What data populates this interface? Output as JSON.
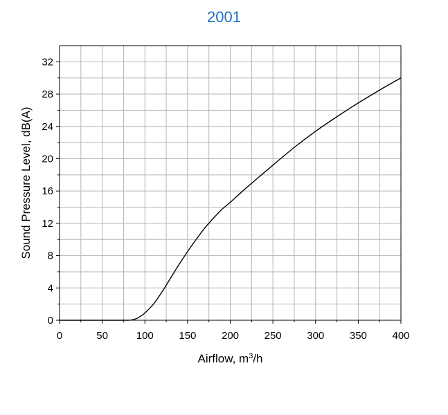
{
  "chart_data": {
    "type": "line",
    "title": "2001",
    "xlabel": "Airflow, m",
    "xlabel_superscript": "3",
    "xlabel_suffix": "/h",
    "ylabel": "Sound Pressure Level, dB(A)",
    "xlim": [
      0,
      400
    ],
    "ylim": [
      0,
      34
    ],
    "x_ticks": [
      0,
      50,
      100,
      150,
      200,
      250,
      300,
      350,
      400
    ],
    "y_ticks": [
      0,
      4,
      8,
      12,
      16,
      20,
      24,
      28,
      32
    ],
    "grid": true,
    "series": [
      {
        "color": "#000000",
        "x": [
          0,
          50,
          80,
          85,
          90,
          95,
          100,
          110,
          120,
          130,
          140,
          150,
          160,
          170,
          180,
          190,
          200,
          220,
          250,
          275,
          300,
          325,
          350,
          375,
          400
        ],
        "y": [
          0,
          0,
          0,
          0.05,
          0.2,
          0.5,
          0.9,
          2.0,
          3.5,
          5.2,
          6.9,
          8.5,
          10.0,
          11.4,
          12.6,
          13.7,
          14.6,
          16.5,
          19.2,
          21.4,
          23.4,
          25.2,
          26.9,
          28.5,
          30.0
        ]
      }
    ]
  }
}
